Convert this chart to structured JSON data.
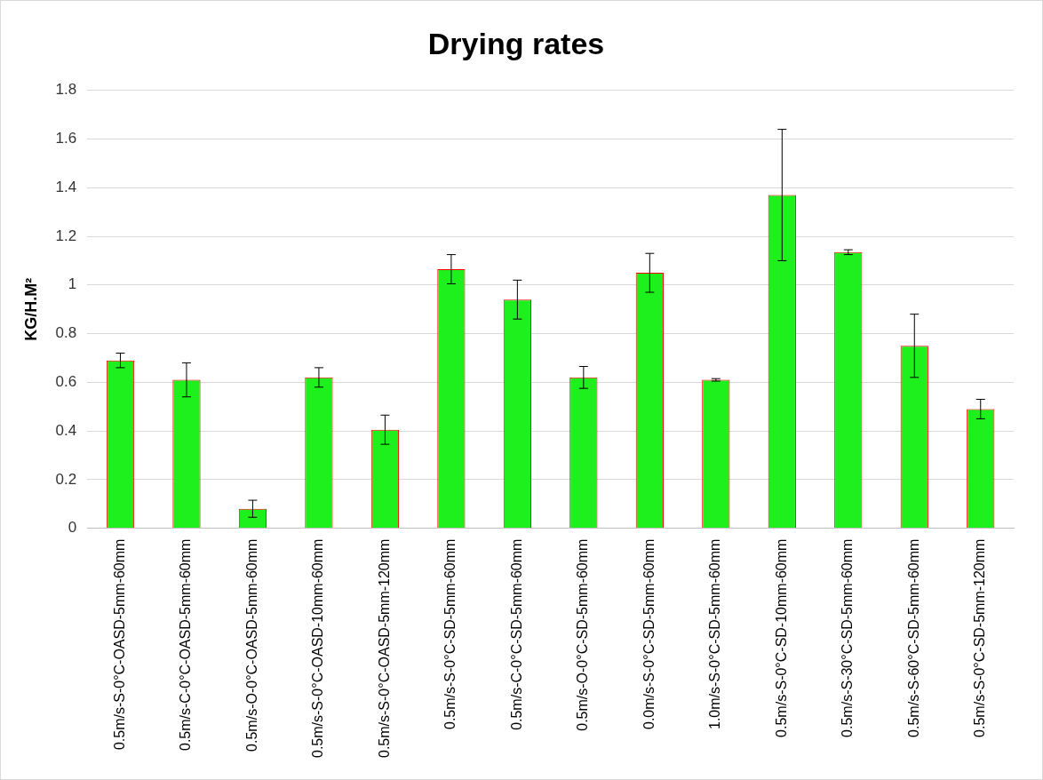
{
  "chart_data": {
    "type": "bar",
    "title": "Drying rates",
    "ylabel": "KG/H.M²",
    "categories": [
      "0.5m/s-S-0°C-OASD-5mm-60mm",
      "0.5m/s-C-0°C-OASD-5mm-60mm",
      "0.5m/s-O-0°C-OASD-5mm-60mm",
      "0.5m/s-S-0°C-OASD-10mm-60mm",
      "0.5m/s-S-0°C-OASD-5mm-120mm",
      "0.5m/s-S-0°C-SD-5mm-60mm",
      "0.5m/s-C-0°C-SD-5mm-60mm",
      "0.5m/s-O-0°C-SD-5mm-60mm",
      "0.0m/s-S-0°C-SD-5mm-60mm",
      "1.0m/s-S-0°C-SD-5mm-60mm",
      "0.5m/s-S-0°C-SD-10mm-60mm",
      "0.5m/s-S-30°C-SD-5mm-60mm",
      "0.5m/s-S-60°C-SD-5mm-60mm",
      "0.5m/s-S-0°C-SD-5mm-120mm"
    ],
    "values": [
      0.69,
      0.61,
      0.08,
      0.62,
      0.405,
      1.065,
      0.94,
      0.62,
      1.05,
      0.61,
      1.37,
      1.135,
      0.75,
      0.49
    ],
    "errors": [
      0.03,
      0.07,
      0.035,
      0.04,
      0.06,
      0.06,
      0.08,
      0.045,
      0.08,
      0.005,
      0.27,
      0.01,
      0.13,
      0.04
    ],
    "color": "#1ef01e",
    "ylim": [
      0,
      1.8
    ],
    "yticks": [
      0,
      0.2,
      0.4,
      0.6,
      0.8,
      1,
      1.2,
      1.4,
      1.6,
      1.8
    ],
    "grid": "y",
    "legend": false
  }
}
